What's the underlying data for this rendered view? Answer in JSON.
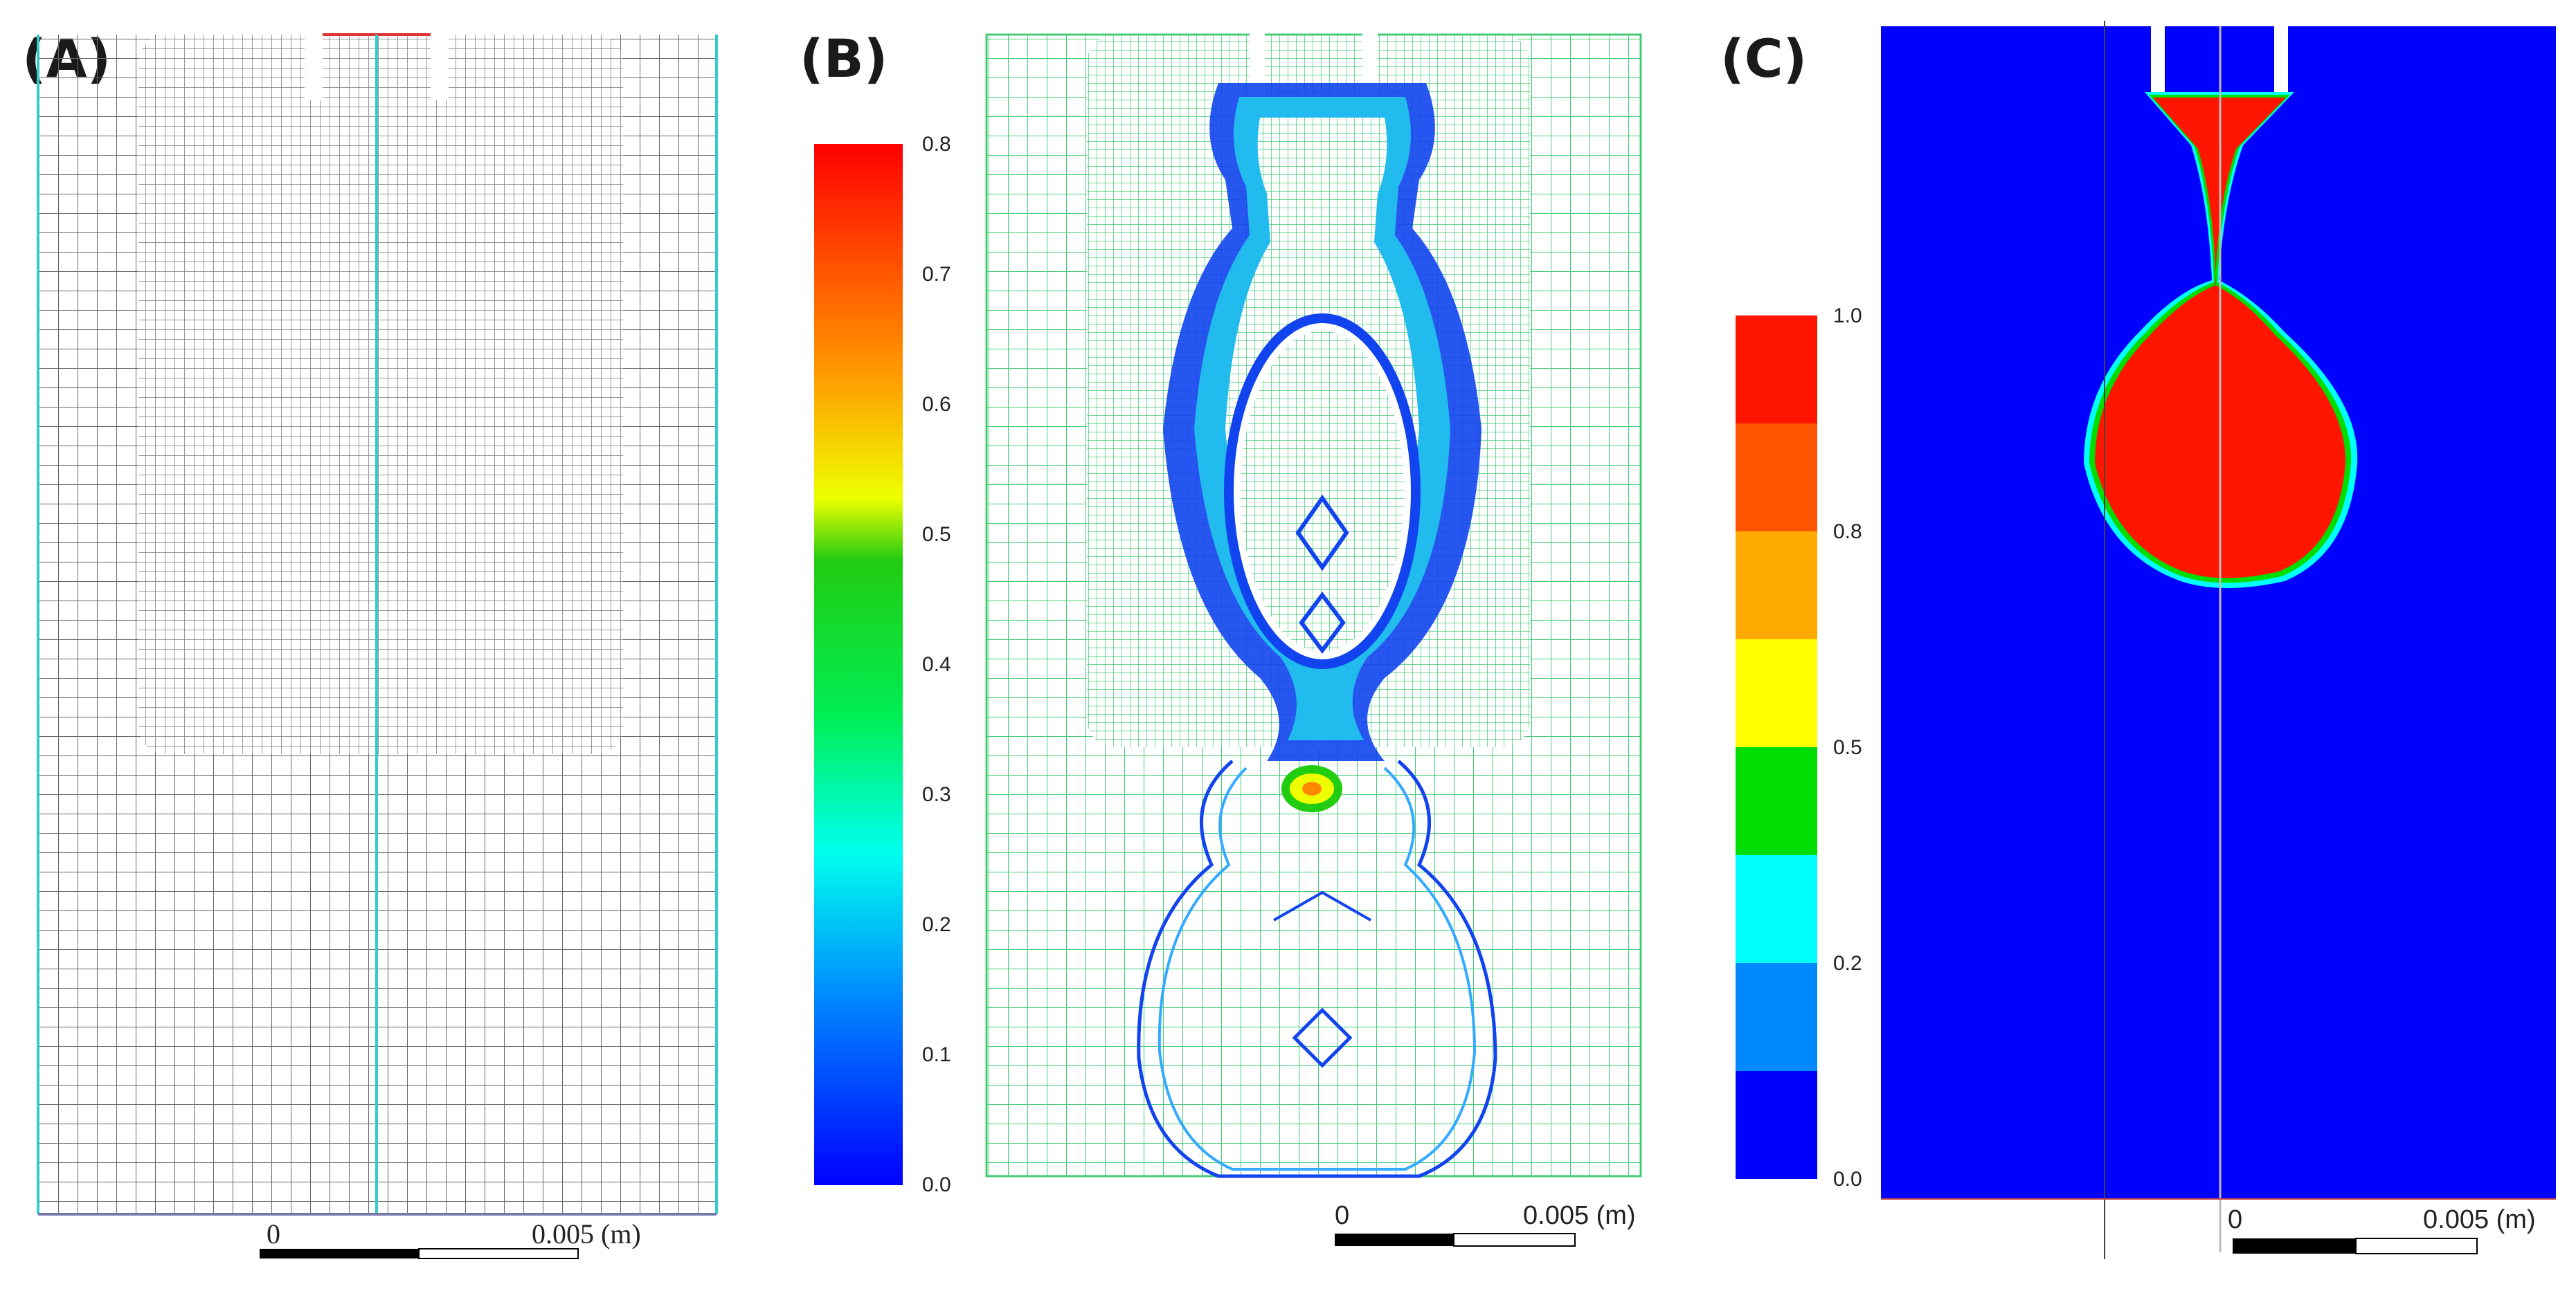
{
  "panels": {
    "a": {
      "label": "(A)",
      "scale": {
        "zero": "0",
        "end": "0.005 (m)"
      }
    },
    "b": {
      "label": "(B)",
      "scale": {
        "zero": "0",
        "end": "0.005 (m)"
      },
      "colorbar_ticks": [
        "0.8",
        "0.7",
        "0.6",
        "0.5",
        "0.4",
        "0.3",
        "0.2",
        "0.1",
        "0.0"
      ]
    },
    "c": {
      "label": "(C)",
      "scale": {
        "zero": "0",
        "end": "0.005 (m)"
      },
      "colorbar_ticks": [
        "1.0",
        "0.8",
        "0.5",
        "0.2",
        "0.0"
      ]
    }
  },
  "colors": {
    "mesh": "#555555",
    "mesh_b": "#33cc66",
    "axis_cyan": "#33cccc",
    "fluid_blue": "#0000ff",
    "droplet_red": "#ff1500",
    "interface_green": "#00dd00"
  }
}
